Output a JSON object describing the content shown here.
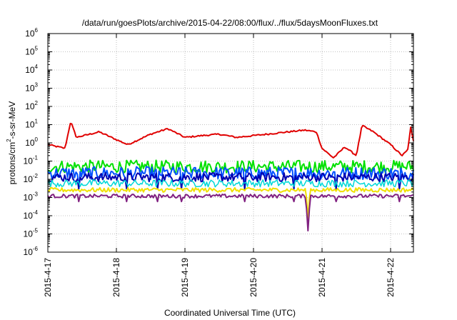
{
  "chart_data": {
    "type": "line",
    "title": "/data/run/goesPlots/archive/2015-04-22/08:00/flux/../flux/5daysMoonFluxes.txt",
    "xlabel": "Coordinated Universal Time (UTC)",
    "ylabel_parts": {
      "pre": "protons/cm",
      "sup": "2",
      "post": "-s-sr-MeV"
    },
    "yscale": "log",
    "ylim": [
      1e-06,
      1000000.0
    ],
    "xlim": [
      "2015-04-17T00:00",
      "2015-04-22T08:00"
    ],
    "x_ticks": [
      "2015-4-17",
      "2015-4-18",
      "2015-4-19",
      "2015-4-20",
      "2015-4-21",
      "2015-4-22"
    ],
    "y_ticks": [
      {
        "base": "10",
        "exp": "-6"
      },
      {
        "base": "10",
        "exp": "-5"
      },
      {
        "base": "10",
        "exp": "-4"
      },
      {
        "base": "10",
        "exp": "-3"
      },
      {
        "base": "10",
        "exp": "-2"
      },
      {
        "base": "10",
        "exp": "-1"
      },
      {
        "base": "10",
        "exp": "0"
      },
      {
        "base": "10",
        "exp": "1"
      },
      {
        "base": "10",
        "exp": "2"
      },
      {
        "base": "10",
        "exp": "3"
      },
      {
        "base": "10",
        "exp": "4"
      },
      {
        "base": "10",
        "exp": "5"
      },
      {
        "base": "10",
        "exp": "6"
      }
    ],
    "grid": true,
    "series": [
      {
        "color": "#e00000",
        "width": 2,
        "base": 1.5,
        "noise": 0.08,
        "points": [
          [
            "2015-04-17T00:00",
            0.8
          ],
          [
            "2015-04-17T06:00",
            0.5
          ],
          [
            "2015-04-17T08:00",
            15
          ],
          [
            "2015-04-17T10:00",
            2
          ],
          [
            "2015-04-17T18:00",
            4
          ],
          [
            "2015-04-18T00:00",
            1.5
          ],
          [
            "2015-04-18T04:00",
            0.8
          ],
          [
            "2015-04-18T12:00",
            3
          ],
          [
            "2015-04-18T18:00",
            6
          ],
          [
            "2015-04-19T00:00",
            2
          ],
          [
            "2015-04-19T06:00",
            2.5
          ],
          [
            "2015-04-19T12:00",
            3
          ],
          [
            "2015-04-19T18:00",
            2
          ],
          [
            "2015-04-20T00:00",
            2.5
          ],
          [
            "2015-04-20T12:00",
            4
          ],
          [
            "2015-04-20T18:00",
            5
          ],
          [
            "2015-04-20T22:00",
            4
          ],
          [
            "2015-04-21T00:00",
            0.5
          ],
          [
            "2015-04-21T04:00",
            0.15
          ],
          [
            "2015-04-21T08:00",
            0.6
          ],
          [
            "2015-04-21T12:00",
            0.2
          ],
          [
            "2015-04-21T14:00",
            9
          ],
          [
            "2015-04-21T18:00",
            4
          ],
          [
            "2015-04-22T00:00",
            0.8
          ],
          [
            "2015-04-22T04:00",
            0.2
          ],
          [
            "2015-04-22T06:00",
            0.4
          ],
          [
            "2015-04-22T07:00",
            7
          ],
          [
            "2015-04-22T08:00",
            1.2
          ]
        ]
      },
      {
        "color": "#00e000",
        "width": 2,
        "base": 0.05,
        "noise": 0.35,
        "min": 0.02,
        "max": 0.15
      },
      {
        "color": "#0050ff",
        "width": 2,
        "base": 0.022,
        "noise": 0.35,
        "dip_to": 0.003
      },
      {
        "color": "#0000b0",
        "width": 2,
        "base": 0.013,
        "noise": 0.25,
        "dip_to": 0.003
      },
      {
        "color": "#00d8d8",
        "width": 1.5,
        "base": 0.006,
        "noise": 0.2
      },
      {
        "color": "#f0e000",
        "width": 2,
        "base": 0.0026,
        "noise": 0.12,
        "deep_dip": [
          "2015-04-20T19:00",
          6e-05
        ]
      },
      {
        "color": "#802080",
        "width": 2,
        "base": 0.0012,
        "noise": 0.1,
        "deep_dip": [
          "2015-04-20T19:00",
          1.5e-05
        ],
        "dip_to": 0.0006
      }
    ]
  }
}
